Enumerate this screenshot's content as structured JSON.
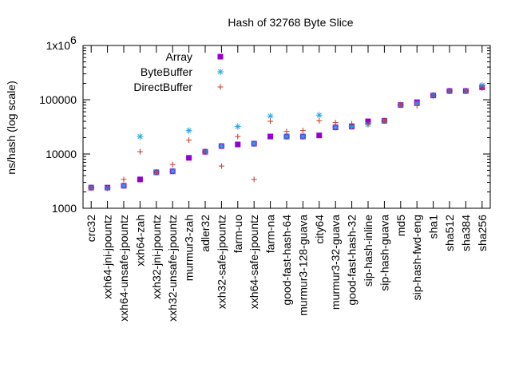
{
  "chart_data": {
    "type": "scatter",
    "title": "Hash of 32768 Byte Slice",
    "xlabel": "",
    "ylabel": "ns/hash (log scale)",
    "yscale": "log",
    "ylim": [
      1000,
      1000000
    ],
    "yticks": [
      {
        "value": 1000,
        "label": "1000"
      },
      {
        "value": 10000,
        "label": "10000"
      },
      {
        "value": 100000,
        "label": "100000"
      },
      {
        "value": 1000000,
        "label": "1x10",
        "exponent": "6"
      }
    ],
    "grid": false,
    "legend_position": "top-left",
    "categories": [
      "crc32",
      "xxh64-jni-jpountz",
      "xxh64-unsafe-jpountz",
      "xxh64-zah",
      "xxh32-jni-jpountz",
      "xxh32-unsafe-jpountz",
      "murmur3-zah",
      "adler32",
      "xxh32-safe-jpountz",
      "farm-uo",
      "xxh64-safe-jpountz",
      "farm-na",
      "good-fast-hash-64",
      "murmur3-128-guava",
      "city64",
      "murmur3-32-guava",
      "good-fast-hash-32",
      "sip-hash-inline",
      "sip-hash-guava",
      "md5",
      "sip-hash-fwd-eng",
      "sha1",
      "sha512",
      "sha384",
      "sha256"
    ],
    "series": [
      {
        "name": "Array",
        "marker": "square",
        "color": "#9400d3",
        "values": [
          2400,
          2400,
          2600,
          3400,
          4600,
          4800,
          8500,
          11000,
          14000,
          15000,
          15500,
          21000,
          21000,
          21000,
          22000,
          31000,
          32000,
          40000,
          41000,
          80000,
          90000,
          120000,
          145000,
          145000,
          170000
        ]
      },
      {
        "name": "ByteBuffer",
        "marker": "asterisk",
        "color": "#2ba8e0",
        "values": [
          2400,
          2350,
          2600,
          21000,
          4600,
          4800,
          27000,
          11000,
          14000,
          32000,
          15500,
          50000,
          21000,
          21000,
          52000,
          31000,
          32000,
          35000,
          41000,
          80000,
          85000,
          120000,
          145000,
          145000,
          185000
        ]
      },
      {
        "name": "DirectBuffer",
        "marker": "plus",
        "color": "#c0392b",
        "values": [
          2400,
          2400,
          3400,
          11000,
          4600,
          6400,
          18000,
          11000,
          6000,
          21000,
          3400,
          40000,
          26000,
          27000,
          41000,
          38000,
          36000,
          36000,
          41000,
          80000,
          78000,
          120000,
          145000,
          145000,
          165000
        ]
      }
    ]
  }
}
